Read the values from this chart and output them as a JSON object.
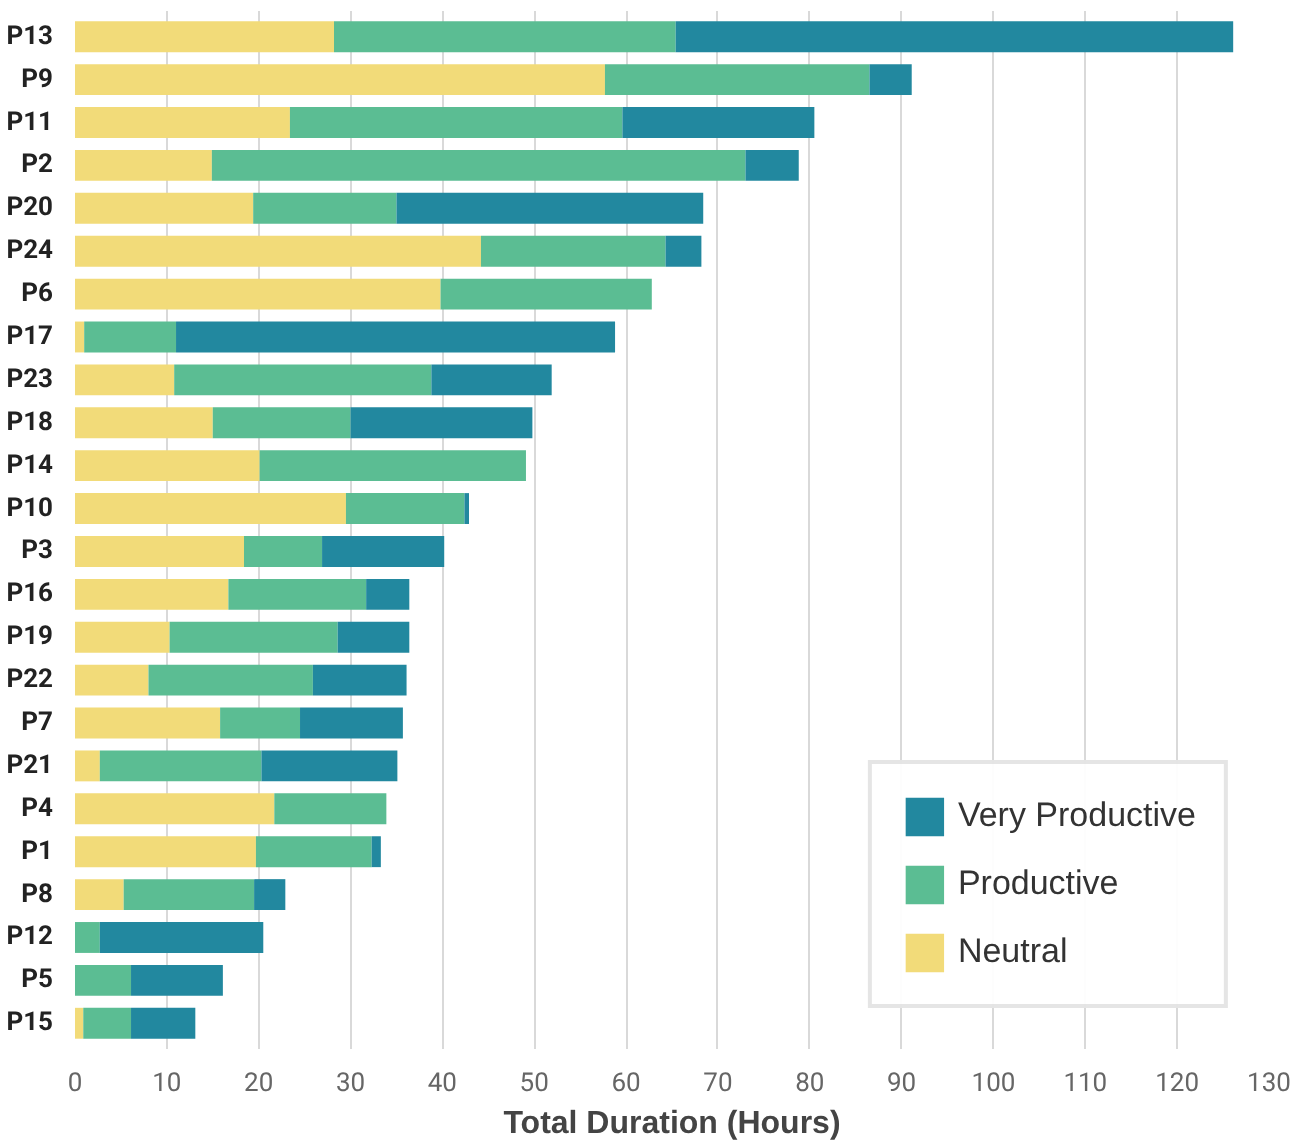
{
  "chart_data": {
    "type": "bar",
    "orientation": "horizontal",
    "stacked": true,
    "xlabel": "Total Duration (Hours)",
    "categories": [
      "P13",
      "P9",
      "P11",
      "P2",
      "P20",
      "P24",
      "P6",
      "P17",
      "P23",
      "P18",
      "P14",
      "P10",
      "P3",
      "P16",
      "P19",
      "P22",
      "P7",
      "P21",
      "P4",
      "P1",
      "P8",
      "P12",
      "P5",
      "P15"
    ],
    "series": [
      {
        "name": "Neutral",
        "color": "#f2db79",
        "values": [
          28.2,
          57.7,
          23.4,
          14.9,
          19.4,
          44.2,
          39.8,
          1.0,
          10.8,
          15.0,
          20.1,
          29.5,
          18.4,
          16.7,
          10.3,
          8.0,
          15.8,
          2.7,
          21.7,
          19.7,
          5.3,
          0,
          0,
          0.9
        ]
      },
      {
        "name": "Productive",
        "color": "#5bbd93",
        "values": [
          37.2,
          28.8,
          36.2,
          58.1,
          15.6,
          20.1,
          23.0,
          10.0,
          28.0,
          15.0,
          29.0,
          12.9,
          8.5,
          15.0,
          18.3,
          17.9,
          8.7,
          17.6,
          12.2,
          12.6,
          14.2,
          2.7,
          6.1,
          5.2
        ]
      },
      {
        "name": "Very Productive",
        "color": "#22889f",
        "values": [
          60.7,
          4.6,
          20.9,
          5.8,
          33.4,
          3.9,
          0,
          47.8,
          13.1,
          19.8,
          0,
          0.5,
          13.3,
          4.7,
          7.8,
          10.2,
          11.2,
          14.8,
          0,
          1.0,
          3.4,
          17.8,
          10.0,
          7.0
        ]
      }
    ],
    "xlim": [
      0,
      130
    ],
    "xticks": [
      0,
      10,
      20,
      30,
      40,
      50,
      60,
      70,
      80,
      90,
      100,
      110,
      120,
      130
    ],
    "grid": "x",
    "legend": "bottom right"
  }
}
